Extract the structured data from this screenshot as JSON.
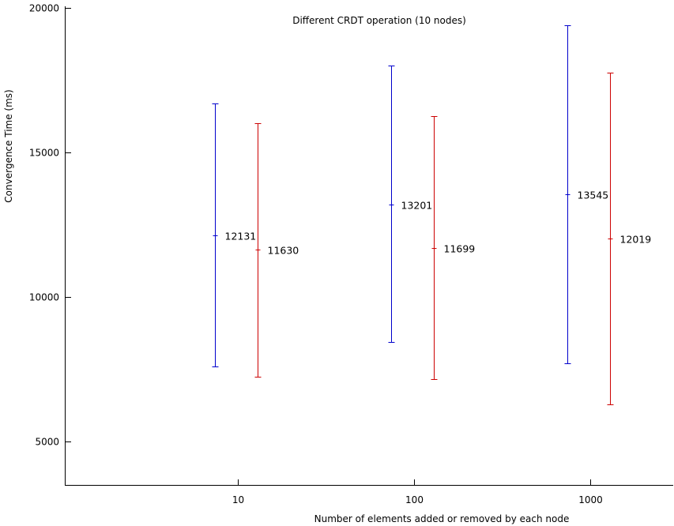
{
  "chart_data": {
    "type": "errorbar",
    "title": "Different CRDT operation (10 nodes)",
    "xlabel": "Number of elements added or removed by each node",
    "ylabel": "Convergence Time (ms)",
    "x_scale": "log",
    "categories": [
      "10",
      "100",
      "1000"
    ],
    "ylim": [
      3500,
      20000
    ],
    "yticks": [
      5000,
      10000,
      15000,
      20000
    ],
    "grid": false,
    "legend": "none",
    "series": [
      {
        "color": "#0000cc",
        "means": [
          12131,
          13201,
          13545
        ],
        "lower": [
          7600,
          8450,
          7700
        ],
        "upper": [
          16700,
          18000,
          19400
        ]
      },
      {
        "color": "#cc0000",
        "means": [
          11630,
          11699,
          12019
        ],
        "lower": [
          7250,
          7150,
          6300
        ],
        "upper": [
          16000,
          16250,
          17750
        ]
      }
    ]
  }
}
